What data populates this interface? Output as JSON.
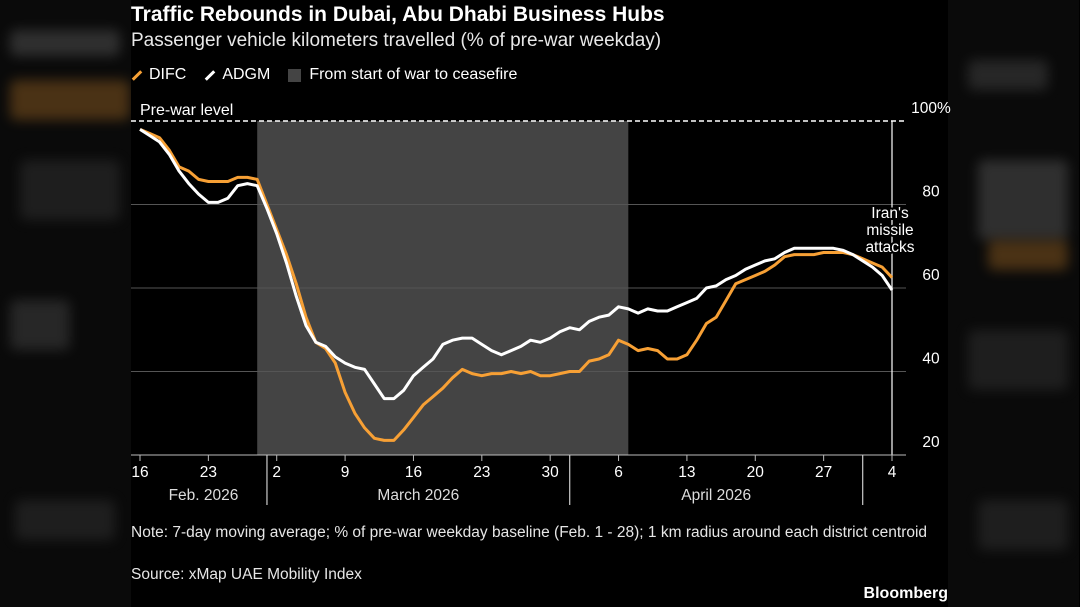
{
  "title": "Traffic Rebounds in Dubai, Abu Dhabi Business Hubs",
  "subtitle": "Passenger vehicle kilometers travelled (% of pre-war weekday)",
  "legend": {
    "difc": "DIFC",
    "adgm": "ADGM",
    "war": "From start of war to ceasefire"
  },
  "colors": {
    "difc": "#f7a035",
    "adgm": "#ffffff",
    "war_shade": "#444444",
    "grid": "#555555"
  },
  "note": "Note: 7-day moving average; % of pre-war weekday baseline (Feb. 1 - 28); 1 km radius around each district centroid",
  "source": "Source: xMap UAE Mobility Index",
  "brand": "Bloomberg",
  "chart_data": {
    "type": "line",
    "title": "Traffic Rebounds in Dubai, Abu Dhabi Business Hubs",
    "ylabel": "",
    "xlabel": "",
    "ylim": [
      20,
      100
    ],
    "y_ticks": [
      "20",
      "40",
      "60",
      "80",
      "100%"
    ],
    "x_start": "2026-02-16",
    "x_end": "2026-05-04",
    "x_tick_labels": [
      "16",
      "23",
      "2",
      "9",
      "16",
      "23",
      "30",
      "6",
      "13",
      "20",
      "27",
      "4"
    ],
    "month_labels": [
      "Feb. 2026",
      "March 2026",
      "April 2026"
    ],
    "reference_line": {
      "label": "Pre-war level",
      "value": 100
    },
    "shaded_region": {
      "label": "From start of war to ceasefire",
      "start": "2026-02-28",
      "end": "2026-04-07"
    },
    "annotation": {
      "text": [
        "Iran's",
        "missile",
        "attacks"
      ],
      "date": "2026-05-04"
    },
    "grid": true,
    "series": [
      {
        "name": "DIFC",
        "color": "#f7a035",
        "points": [
          [
            "2026-02-16",
            98
          ],
          [
            "2026-02-17",
            97
          ],
          [
            "2026-02-18",
            96
          ],
          [
            "2026-02-19",
            93
          ],
          [
            "2026-02-20",
            89
          ],
          [
            "2026-02-21",
            88
          ],
          [
            "2026-02-22",
            86
          ],
          [
            "2026-02-23",
            85.5
          ],
          [
            "2026-02-24",
            85.5
          ],
          [
            "2026-02-25",
            85.5
          ],
          [
            "2026-02-26",
            86.5
          ],
          [
            "2026-02-27",
            86.5
          ],
          [
            "2026-02-28",
            86
          ],
          [
            "2026-03-01",
            80
          ],
          [
            "2026-03-02",
            74
          ],
          [
            "2026-03-03",
            68
          ],
          [
            "2026-03-04",
            61
          ],
          [
            "2026-03-05",
            53
          ],
          [
            "2026-03-06",
            47
          ],
          [
            "2026-03-07",
            45.5
          ],
          [
            "2026-03-08",
            42
          ],
          [
            "2026-03-09",
            35
          ],
          [
            "2026-03-10",
            30
          ],
          [
            "2026-03-11",
            26.5
          ],
          [
            "2026-03-12",
            24
          ],
          [
            "2026-03-13",
            23.5
          ],
          [
            "2026-03-14",
            23.5
          ],
          [
            "2026-03-15",
            26
          ],
          [
            "2026-03-16",
            29
          ],
          [
            "2026-03-17",
            32
          ],
          [
            "2026-03-18",
            34
          ],
          [
            "2026-03-19",
            36
          ],
          [
            "2026-03-20",
            38.5
          ],
          [
            "2026-03-21",
            40.5
          ],
          [
            "2026-03-22",
            39.5
          ],
          [
            "2026-03-23",
            39
          ],
          [
            "2026-03-24",
            39.5
          ],
          [
            "2026-03-25",
            39.5
          ],
          [
            "2026-03-26",
            40
          ],
          [
            "2026-03-27",
            39.5
          ],
          [
            "2026-03-28",
            40
          ],
          [
            "2026-03-29",
            39
          ],
          [
            "2026-03-30",
            39
          ],
          [
            "2026-03-31",
            39.5
          ],
          [
            "2026-04-01",
            40
          ],
          [
            "2026-04-02",
            40
          ],
          [
            "2026-04-03",
            42.5
          ],
          [
            "2026-04-04",
            43
          ],
          [
            "2026-04-05",
            44
          ],
          [
            "2026-04-06",
            47.5
          ],
          [
            "2026-04-07",
            46.5
          ],
          [
            "2026-04-08",
            45
          ],
          [
            "2026-04-09",
            45.5
          ],
          [
            "2026-04-10",
            45
          ],
          [
            "2026-04-11",
            43
          ],
          [
            "2026-04-12",
            43
          ],
          [
            "2026-04-13",
            44
          ],
          [
            "2026-04-14",
            47.5
          ],
          [
            "2026-04-15",
            51.5
          ],
          [
            "2026-04-16",
            53
          ],
          [
            "2026-04-17",
            57
          ],
          [
            "2026-04-18",
            61
          ],
          [
            "2026-04-19",
            62
          ],
          [
            "2026-04-20",
            63
          ],
          [
            "2026-04-21",
            64
          ],
          [
            "2026-04-22",
            65.5
          ],
          [
            "2026-04-23",
            67.5
          ],
          [
            "2026-04-24",
            68
          ],
          [
            "2026-04-25",
            68
          ],
          [
            "2026-04-26",
            68
          ],
          [
            "2026-04-27",
            68.5
          ],
          [
            "2026-04-28",
            68.5
          ],
          [
            "2026-04-29",
            68.5
          ],
          [
            "2026-04-30",
            68
          ],
          [
            "2026-05-01",
            67
          ],
          [
            "2026-05-02",
            66
          ],
          [
            "2026-05-03",
            65
          ],
          [
            "2026-05-04",
            62.5
          ]
        ]
      },
      {
        "name": "ADGM",
        "color": "#ffffff",
        "points": [
          [
            "2026-02-16",
            98
          ],
          [
            "2026-02-17",
            96.5
          ],
          [
            "2026-02-18",
            95
          ],
          [
            "2026-02-19",
            92
          ],
          [
            "2026-02-20",
            88
          ],
          [
            "2026-02-21",
            85
          ],
          [
            "2026-02-22",
            82.5
          ],
          [
            "2026-02-23",
            80.5
          ],
          [
            "2026-02-24",
            80.5
          ],
          [
            "2026-02-25",
            81.5
          ],
          [
            "2026-02-26",
            84.5
          ],
          [
            "2026-02-27",
            85
          ],
          [
            "2026-02-28",
            84.5
          ],
          [
            "2026-03-01",
            79
          ],
          [
            "2026-03-02",
            73
          ],
          [
            "2026-03-03",
            66
          ],
          [
            "2026-03-04",
            58
          ],
          [
            "2026-03-05",
            51
          ],
          [
            "2026-03-06",
            47
          ],
          [
            "2026-03-07",
            46
          ],
          [
            "2026-03-08",
            43.5
          ],
          [
            "2026-03-09",
            42
          ],
          [
            "2026-03-10",
            41
          ],
          [
            "2026-03-11",
            40.5
          ],
          [
            "2026-03-12",
            37
          ],
          [
            "2026-03-13",
            33.5
          ],
          [
            "2026-03-14",
            33.5
          ],
          [
            "2026-03-15",
            35.5
          ],
          [
            "2026-03-16",
            39
          ],
          [
            "2026-03-17",
            41
          ],
          [
            "2026-03-18",
            43
          ],
          [
            "2026-03-19",
            46.5
          ],
          [
            "2026-03-20",
            47.5
          ],
          [
            "2026-03-21",
            48
          ],
          [
            "2026-03-22",
            48
          ],
          [
            "2026-03-23",
            46.5
          ],
          [
            "2026-03-24",
            45
          ],
          [
            "2026-03-25",
            44
          ],
          [
            "2026-03-26",
            45
          ],
          [
            "2026-03-27",
            46
          ],
          [
            "2026-03-28",
            47.5
          ],
          [
            "2026-03-29",
            47
          ],
          [
            "2026-03-30",
            48
          ],
          [
            "2026-03-31",
            49.5
          ],
          [
            "2026-04-01",
            50.5
          ],
          [
            "2026-04-02",
            50
          ],
          [
            "2026-04-03",
            52
          ],
          [
            "2026-04-04",
            53
          ],
          [
            "2026-04-05",
            53.5
          ],
          [
            "2026-04-06",
            55.5
          ],
          [
            "2026-04-07",
            55
          ],
          [
            "2026-04-08",
            54
          ],
          [
            "2026-04-09",
            55
          ],
          [
            "2026-04-10",
            54.5
          ],
          [
            "2026-04-11",
            54.5
          ],
          [
            "2026-04-12",
            55.5
          ],
          [
            "2026-04-13",
            56.5
          ],
          [
            "2026-04-14",
            57.5
          ],
          [
            "2026-04-15",
            60
          ],
          [
            "2026-04-16",
            60.5
          ],
          [
            "2026-04-17",
            62
          ],
          [
            "2026-04-18",
            63
          ],
          [
            "2026-04-19",
            64.5
          ],
          [
            "2026-04-20",
            65.5
          ],
          [
            "2026-04-21",
            66.5
          ],
          [
            "2026-04-22",
            67
          ],
          [
            "2026-04-23",
            68.5
          ],
          [
            "2026-04-24",
            69.5
          ],
          [
            "2026-04-25",
            69.5
          ],
          [
            "2026-04-26",
            69.5
          ],
          [
            "2026-04-27",
            69.5
          ],
          [
            "2026-04-28",
            69.5
          ],
          [
            "2026-04-29",
            69
          ],
          [
            "2026-04-30",
            68
          ],
          [
            "2026-05-01",
            66.5
          ],
          [
            "2026-05-02",
            65
          ],
          [
            "2026-05-03",
            63
          ],
          [
            "2026-05-04",
            59.5
          ]
        ]
      }
    ]
  }
}
